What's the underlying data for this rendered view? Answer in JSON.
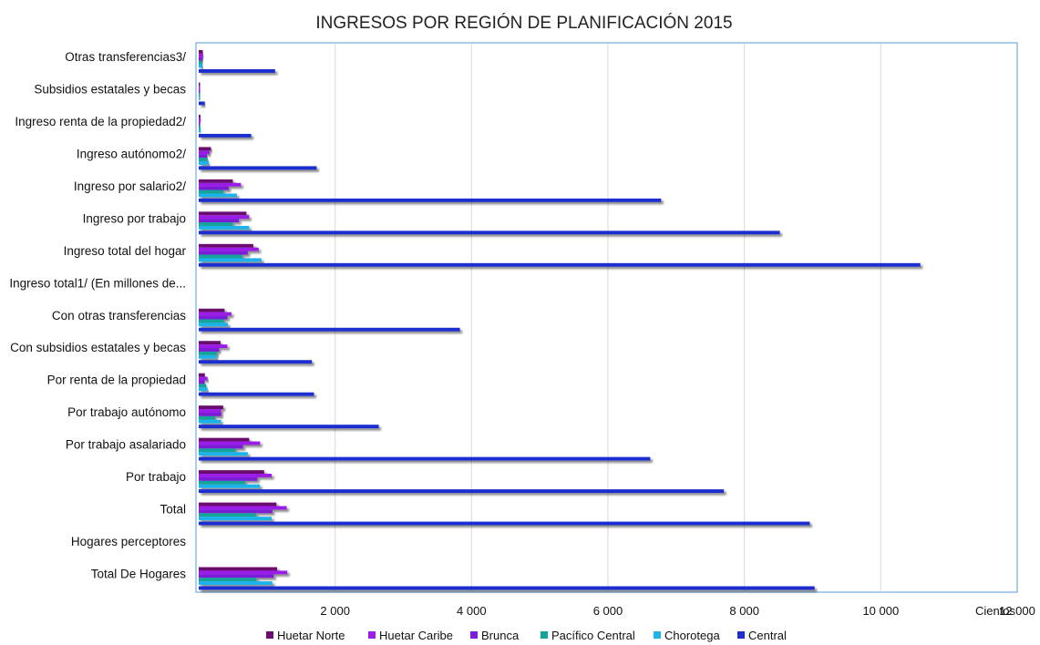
{
  "chart_data": {
    "type": "bar",
    "orientation": "horizontal",
    "title": "INGRESOS POR REGIÓN DE PLANIFICACIÓN 2015",
    "xlabel": "Cientos",
    "ylabel": "",
    "xlim": [
      0,
      12000
    ],
    "x_ticks": [
      "2 000",
      "4 000",
      "6 000",
      "8 000",
      "10 000",
      "12 000"
    ],
    "grid": "vertical",
    "legend_position": "bottom",
    "categories": [
      "Otras transferencias3/",
      "Subsidios estatales y becas",
      "Ingreso renta de la propiedad2/",
      "Ingreso autónomo2/",
      "Ingreso por salario2/",
      "Ingreso por trabajo",
      "Ingreso total del hogar",
      "Ingreso total1/ (En millones de...",
      "Con otras transferencias",
      "Con subsidios estatales y becas",
      "Por renta de la propiedad",
      "Por trabajo autónomo",
      "Por trabajo asalariado",
      "Por trabajo",
      "Total",
      "Hogares perceptores",
      "Total De Hogares"
    ],
    "series": [
      {
        "name": "Huetar Norte",
        "color": "#6B0F6E",
        "values": [
          60,
          10,
          25,
          180,
          500,
          700,
          800,
          0,
          380,
          320,
          90,
          360,
          740,
          960,
          1140,
          0,
          1150
        ]
      },
      {
        "name": "Huetar Caribe",
        "color": "#9B1FE8",
        "values": [
          65,
          15,
          30,
          160,
          620,
          740,
          880,
          0,
          480,
          420,
          130,
          330,
          900,
          1070,
          1290,
          0,
          1300
        ]
      },
      {
        "name": "Brunca",
        "color": "#7B1FD8",
        "values": [
          55,
          12,
          22,
          120,
          440,
          590,
          720,
          0,
          420,
          300,
          85,
          330,
          650,
          860,
          1080,
          0,
          1100
        ]
      },
      {
        "name": "Pacífico Central",
        "color": "#12A39A",
        "values": [
          50,
          10,
          25,
          130,
          360,
          500,
          640,
          0,
          370,
          270,
          110,
          240,
          540,
          680,
          840,
          0,
          850
        ]
      },
      {
        "name": "Chorotega",
        "color": "#1EB3EB",
        "values": [
          55,
          12,
          30,
          150,
          560,
          740,
          920,
          0,
          430,
          260,
          130,
          330,
          720,
          900,
          1070,
          0,
          1080
        ]
      },
      {
        "name": "Central",
        "color": "#1C2FCF",
        "values": [
          1120,
          90,
          770,
          1730,
          6780,
          8520,
          10580,
          0,
          3830,
          1660,
          1690,
          2640,
          6620,
          7700,
          8960,
          0,
          9030
        ]
      }
    ]
  }
}
